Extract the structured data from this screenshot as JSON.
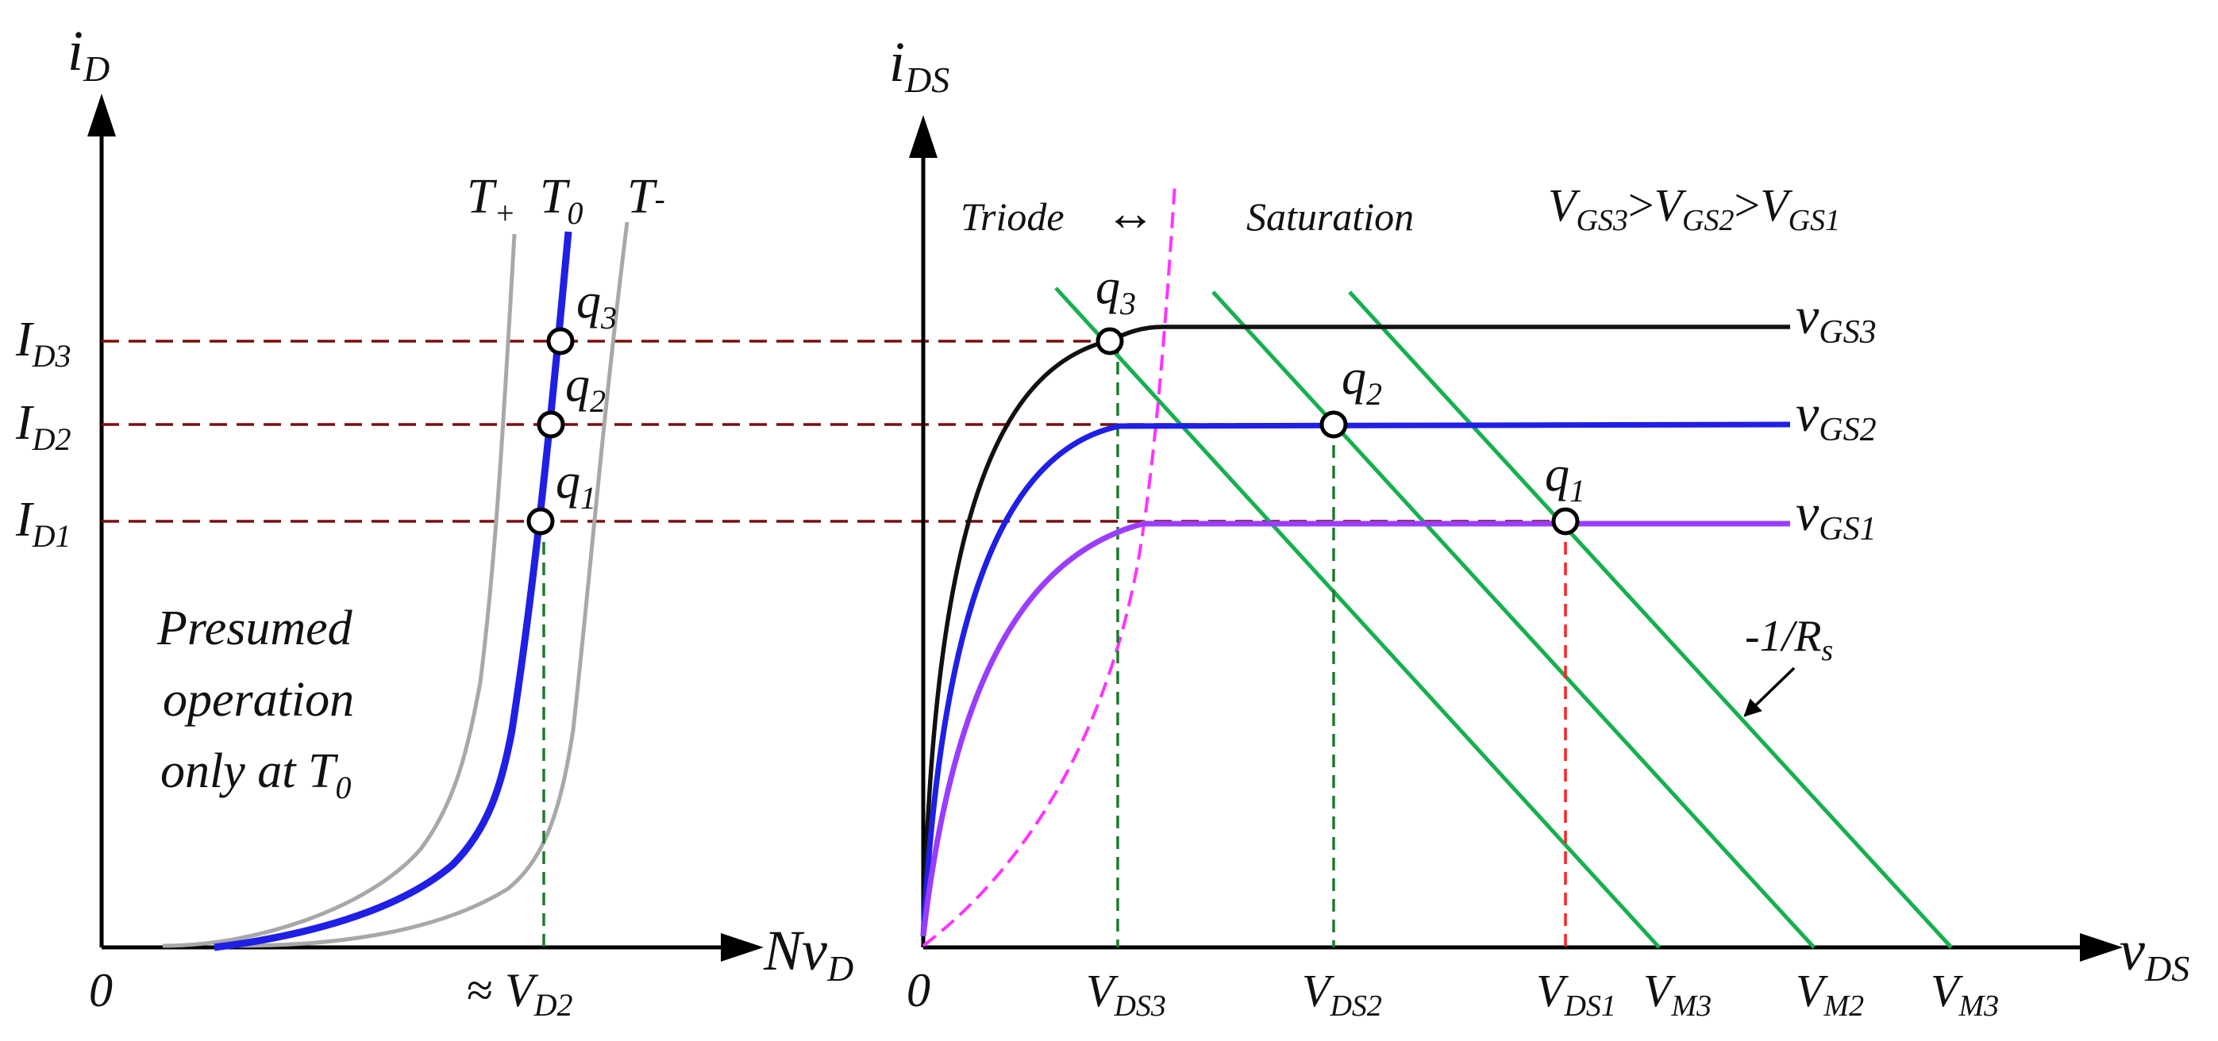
{
  "colors": {
    "axis": "#000000",
    "T0_curve": "#1f1fe6",
    "temp_curves": "#a8a8a8",
    "projection_dashed": "#7a0e0e",
    "vgs3_curve": "#111111",
    "vgs2_curve": "#1f1fe6",
    "vgs1_curve": "#9a3dff",
    "boundary_dashed": "#ff33ff",
    "load_lines": "#16b04f",
    "vds_dashed_green": "#1f7a2e",
    "vds1_dashed_red": "#ff2222"
  },
  "left_panel": {
    "y_axis": {
      "sym": "i",
      "sub": "D"
    },
    "x_axis": {
      "sym": "Nv",
      "sub": "D"
    },
    "origin": "0",
    "curve_labels": [
      {
        "id": "T_plus",
        "sym": "T",
        "sub": "+"
      },
      {
        "id": "T0",
        "sym": "T",
        "sub": "0"
      },
      {
        "id": "T_minus",
        "sym": "T",
        "sub": "-"
      }
    ],
    "current_levels": [
      {
        "id": "ID3",
        "sym": "I",
        "sub": "D3",
        "point": {
          "sym": "q",
          "sub": "3"
        }
      },
      {
        "id": "ID2",
        "sym": "I",
        "sub": "D2",
        "point": {
          "sym": "q",
          "sub": "2"
        }
      },
      {
        "id": "ID1",
        "sym": "I",
        "sub": "D1",
        "point": {
          "sym": "q",
          "sub": "1"
        }
      }
    ],
    "x_tick": {
      "prefix": "≈ ",
      "sym": "V",
      "sub": "D2"
    },
    "note": {
      "line1": "Presumed",
      "line2": "operation",
      "line3_main": "only at T",
      "line3_sub": "0"
    }
  },
  "right_panel": {
    "y_axis": {
      "sym": "i",
      "sub": "DS"
    },
    "x_axis": {
      "sym": "v",
      "sub": "DS"
    },
    "origin": "0",
    "region": {
      "left": "Triode",
      "arrow": "↔",
      "right": "Saturation"
    },
    "inequality": {
      "a_sym": "V",
      "a_sub": "GS3",
      "b_sym": "V",
      "b_sub": "GS2",
      "c_sym": "V",
      "c_sub": "GS1",
      "op": ">"
    },
    "curves": [
      {
        "id": "vgs3",
        "sym": "v",
        "sub": "GS3"
      },
      {
        "id": "vgs2",
        "sym": "v",
        "sub": "GS2"
      },
      {
        "id": "vgs1",
        "sym": "v",
        "sub": "GS1"
      }
    ],
    "points": [
      {
        "id": "q3",
        "sym": "q",
        "sub": "3"
      },
      {
        "id": "q2",
        "sym": "q",
        "sub": "2"
      },
      {
        "id": "q1",
        "sym": "q",
        "sub": "1"
      }
    ],
    "x_ticks": [
      {
        "id": "VDS3",
        "sym": "V",
        "sub": "DS3"
      },
      {
        "id": "VDS2",
        "sym": "V",
        "sub": "DS2"
      },
      {
        "id": "VDS1",
        "sym": "V",
        "sub": "DS1"
      },
      {
        "id": "VM3a",
        "sym": "V",
        "sub": "M3"
      },
      {
        "id": "VM2",
        "sym": "V",
        "sub": "M2"
      },
      {
        "id": "VM3b",
        "sym": "V",
        "sub": "M3"
      }
    ],
    "slope_label": {
      "main": "-1/R",
      "sub": "s"
    }
  }
}
